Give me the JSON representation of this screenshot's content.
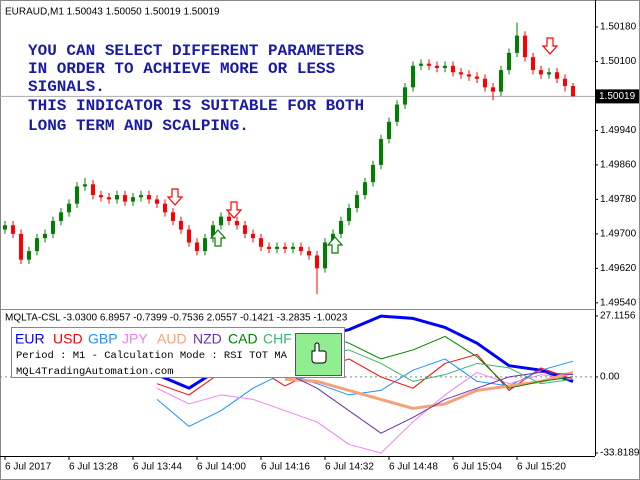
{
  "chart_data": [
    {
      "type": "candlestick",
      "title": "EURAUD,M1  1.50043 1.50050 1.50019 1.50019",
      "annotations": [
        "YOU CAN SELECT DIFFERENT PARAMETERS",
        "IN ORDER TO ACHIEVE MORE OR LESS",
        "SIGNALS.",
        "THIS INDICATOR IS SUITABLE FOR BOTH",
        "LONG TERM AND SCALPING."
      ],
      "categories": [
        "6 Jul 2017",
        null,
        null,
        null,
        null,
        null,
        null,
        null,
        "6 Jul 13:28",
        null,
        null,
        null,
        null,
        null,
        null,
        null,
        "6 Jul 13:44",
        null,
        null,
        null,
        null,
        null,
        null,
        null,
        "6 Jul 14:00",
        null,
        null,
        null,
        null,
        null,
        null,
        null,
        "6 Jul 14:16",
        null,
        null,
        null,
        null,
        null,
        null,
        null,
        "6 Jul 14:32",
        null,
        null,
        null,
        null,
        null,
        null,
        null,
        "6 Jul 14:48",
        null,
        null,
        null,
        null,
        null,
        null,
        null,
        "6 Jul 15:04",
        null,
        null,
        null,
        null,
        null,
        null,
        null,
        "6 Jul 15:20",
        null,
        null,
        null,
        null,
        null,
        null,
        null
      ],
      "open": [
        1.4971,
        1.4972,
        1.497,
        1.4964,
        1.4966,
        1.4969,
        1.497,
        1.4973,
        1.4975,
        1.4977,
        1.4981,
        1.49815,
        1.4979,
        1.49785,
        1.4978,
        1.4979,
        1.49775,
        1.49785,
        1.4979,
        1.4978,
        1.4977,
        1.4975,
        1.4973,
        1.4971,
        1.4968,
        1.4966,
        1.4969,
        1.4972,
        1.4974,
        1.4973,
        1.4972,
        1.497,
        1.4969,
        1.4967,
        1.49665,
        1.4967,
        1.49665,
        1.4967,
        1.4966,
        1.4965,
        1.4962,
        1.4968,
        1.497,
        1.4973,
        1.4976,
        1.4979,
        1.4982,
        1.4986,
        1.4992,
        1.4996,
        1.5,
        1.5004,
        1.5009,
        1.50095,
        1.5009,
        1.50085,
        1.5009,
        1.50075,
        1.5007,
        1.50065,
        1.5006,
        1.5004,
        1.5003,
        1.5008,
        1.5012,
        1.5016,
        1.5011,
        1.5008,
        1.5007,
        1.50075,
        1.5006,
        1.50043
      ],
      "high": [
        1.4973,
        1.4973,
        1.4971,
        1.4967,
        1.497,
        1.4971,
        1.4974,
        1.4976,
        1.4978,
        1.4982,
        1.4983,
        1.49825,
        1.498,
        1.49795,
        1.498,
        1.498,
        1.49795,
        1.498,
        1.498,
        1.4979,
        1.4978,
        1.4976,
        1.4974,
        1.4972,
        1.4969,
        1.497,
        1.4973,
        1.4975,
        1.4975,
        1.4974,
        1.4973,
        1.4971,
        1.497,
        1.4968,
        1.4968,
        1.4968,
        1.4968,
        1.4968,
        1.4967,
        1.4966,
        1.4969,
        1.4971,
        1.4974,
        1.4977,
        1.498,
        1.4983,
        1.4987,
        1.4993,
        1.4997,
        1.5001,
        1.5005,
        1.501,
        1.50105,
        1.50105,
        1.501,
        1.501,
        1.501,
        1.50085,
        1.5008,
        1.50075,
        1.5007,
        1.5005,
        1.5009,
        1.5013,
        1.5019,
        1.5017,
        1.5012,
        1.5009,
        1.50085,
        1.50085,
        1.5007,
        1.5005
      ],
      "low": [
        1.497,
        1.4969,
        1.4963,
        1.4963,
        1.4965,
        1.4968,
        1.4969,
        1.4972,
        1.4974,
        1.4976,
        1.498,
        1.4978,
        1.49775,
        1.4977,
        1.4977,
        1.49765,
        1.49765,
        1.49775,
        1.4977,
        1.4976,
        1.4974,
        1.4972,
        1.497,
        1.4967,
        1.4965,
        1.4965,
        1.4968,
        1.4971,
        1.4972,
        1.4971,
        1.4969,
        1.4968,
        1.4966,
        1.49655,
        1.49655,
        1.49655,
        1.49655,
        1.4965,
        1.4964,
        1.4956,
        1.4961,
        1.4967,
        1.4969,
        1.4972,
        1.4975,
        1.4978,
        1.4981,
        1.4985,
        1.4991,
        1.4995,
        1.4999,
        1.5003,
        1.5008,
        1.5008,
        1.50075,
        1.50075,
        1.50065,
        1.5006,
        1.50055,
        1.5005,
        1.5003,
        1.5001,
        1.5002,
        1.5007,
        1.5011,
        1.501,
        1.5007,
        1.5006,
        1.5006,
        1.5005,
        1.5003,
        1.50019
      ],
      "close": [
        1.4972,
        1.497,
        1.4964,
        1.4966,
        1.4969,
        1.497,
        1.4973,
        1.4975,
        1.4977,
        1.4981,
        1.49815,
        1.4979,
        1.49785,
        1.4978,
        1.4979,
        1.49775,
        1.49785,
        1.4979,
        1.4978,
        1.4977,
        1.4975,
        1.4973,
        1.4971,
        1.4968,
        1.4966,
        1.4969,
        1.4972,
        1.4974,
        1.4973,
        1.4972,
        1.497,
        1.4969,
        1.4967,
        1.49665,
        1.4967,
        1.49665,
        1.4967,
        1.4966,
        1.4965,
        1.4962,
        1.4968,
        1.497,
        1.4973,
        1.4976,
        1.4979,
        1.4982,
        1.4986,
        1.4992,
        1.4996,
        1.5,
        1.5004,
        1.5009,
        1.50095,
        1.5009,
        1.50085,
        1.5009,
        1.50075,
        1.5007,
        1.50065,
        1.5006,
        1.5004,
        1.5003,
        1.5008,
        1.5012,
        1.5016,
        1.5011,
        1.5008,
        1.5007,
        1.50075,
        1.5006,
        1.50043,
        1.50019
      ],
      "up_color": "#008000",
      "down_color": "#ff0000",
      "ylim": [
        1.49528,
        1.50238
      ],
      "yticks": [
        {
          "value": 1.5018,
          "label": "1.50180"
        },
        {
          "value": 1.501,
          "label": "1.50100"
        },
        {
          "value": 1.4994,
          "label": "1.49940"
        },
        {
          "value": 1.4986,
          "label": "1.49860"
        },
        {
          "value": 1.4978,
          "label": "1.49780"
        },
        {
          "value": 1.497,
          "label": "1.49700"
        },
        {
          "value": 1.4962,
          "label": "1.49620"
        },
        {
          "value": 1.4954,
          "label": "1.49540"
        }
      ],
      "current_price": 1.50019
    },
    {
      "type": "line",
      "title": "MQLTA-CSL -3.0300 6.8957 -0.7399 -0.7536 2.0557 -0.1421 -3.2835 -1.0023",
      "legend_text": [
        "Period : M1 - Calculation Mode : RSI TOT MA",
        "MQL4TradingAutomation.com"
      ],
      "ylim": [
        -34.7,
        29.3
      ],
      "yticks": [
        27.1156,
        {
          "value": 0,
          "label": "0.00"
        },
        -33.8189
      ],
      "series": [
        {
          "name": "EUR",
          "color": "#0000ff",
          "line_width": 3,
          "values": [
            null,
            null,
            null,
            null,
            1,
            -5,
            4,
            10,
            14,
            18,
            21,
            27,
            26,
            22,
            15,
            5,
            3,
            -2
          ]
        },
        {
          "name": "USD",
          "color": "#ff0000",
          "line_width": 1,
          "values": [
            null,
            null,
            null,
            null,
            -3,
            -8,
            2,
            5,
            -4,
            3,
            8,
            0,
            -5,
            6,
            10,
            -6,
            4,
            -1
          ]
        },
        {
          "name": "GBP",
          "color": "#1e90ff",
          "line_width": 1,
          "values": [
            null,
            null,
            null,
            null,
            -10,
            -22,
            -15,
            -5,
            2,
            -3,
            -8,
            -6,
            3,
            8,
            -2,
            -4,
            3,
            7
          ]
        },
        {
          "name": "JPY",
          "color": "#ee82ee",
          "line_width": 1,
          "values": [
            null,
            null,
            null,
            null,
            -5,
            -12,
            -8,
            -10,
            -15,
            -20,
            -30,
            -33.8189,
            -20,
            -8,
            2,
            -3,
            1,
            -1
          ]
        },
        {
          "name": "AUD",
          "color": "#f4a07a",
          "line_width": 3,
          "values": [
            null,
            null,
            null,
            null,
            null,
            null,
            null,
            null,
            -1,
            -2,
            -6,
            -10,
            -14,
            -12,
            -6,
            -4,
            -2,
            2
          ]
        },
        {
          "name": "NZD",
          "color": "#6a2fb0",
          "line_width": 1,
          "values": [
            null,
            null,
            null,
            null,
            5,
            8,
            10,
            6,
            2,
            -5,
            -15,
            -25,
            -18,
            -10,
            -5,
            0,
            2,
            1
          ]
        },
        {
          "name": "CAD",
          "color": "#008000",
          "line_width": 1,
          "values": [
            null,
            null,
            null,
            null,
            8,
            5,
            3,
            12,
            16,
            20,
            15,
            8,
            12,
            18,
            9,
            -5,
            -2,
            0
          ]
        },
        {
          "name": "CHF",
          "color": "#3cb371",
          "line_width": 1,
          "values": [
            null,
            null,
            null,
            null,
            3,
            10,
            6,
            2,
            4,
            9,
            12,
            6,
            -2,
            1,
            6,
            4,
            -3,
            -1
          ]
        }
      ]
    }
  ]
}
